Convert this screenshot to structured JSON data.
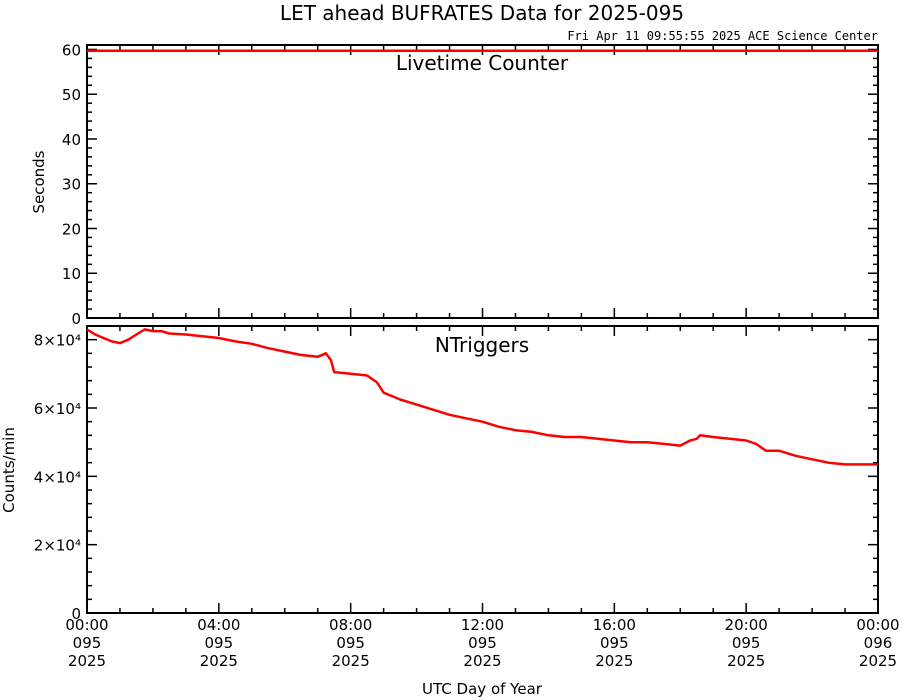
{
  "title": "LET ahead BUFRATES Data for 2025-095",
  "timestamp": "Fri Apr 11 09:55:55 2025 ACE Science Center",
  "x_axis_label": "UTC Day of Year",
  "line_color": "#ff0000",
  "label_color": "#0000ff",
  "x_ticks": [
    {
      "time": "00:00",
      "day": "095",
      "year": "2025"
    },
    {
      "time": "04:00",
      "day": "095",
      "year": "2025"
    },
    {
      "time": "08:00",
      "day": "095",
      "year": "2025"
    },
    {
      "time": "12:00",
      "day": "095",
      "year": "2025"
    },
    {
      "time": "16:00",
      "day": "095",
      "year": "2025"
    },
    {
      "time": "20:00",
      "day": "095",
      "year": "2025"
    },
    {
      "time": "00:00",
      "day": "096",
      "year": "2025"
    }
  ],
  "chart_data": [
    {
      "type": "line",
      "title": "Livetime Counter",
      "ylabel": "Seconds",
      "xlim": [
        0,
        24
      ],
      "ylim": [
        0,
        61
      ],
      "y_ticks": [
        "0",
        "10",
        "20",
        "30",
        "40",
        "50",
        "60"
      ],
      "y_tick_values": [
        0,
        10,
        20,
        30,
        40,
        50,
        60
      ],
      "series": [
        {
          "x": [
            0,
            24
          ],
          "y": [
            59.7,
            59.7
          ]
        }
      ]
    },
    {
      "type": "line",
      "title": "NTriggers",
      "ylabel": "Counts/min",
      "xlim": [
        0,
        24
      ],
      "ylim": [
        0,
        84000
      ],
      "y_ticks": [
        "0",
        "2×10⁴",
        "4×10⁴",
        "6×10⁴",
        "8×10⁴"
      ],
      "y_tick_values": [
        0,
        20000,
        40000,
        60000,
        80000
      ],
      "series": [
        {
          "x": [
            0,
            0.25,
            0.5,
            0.75,
            1.0,
            1.25,
            1.5,
            1.75,
            2.0,
            2.25,
            2.5,
            3.0,
            3.5,
            4.0,
            4.5,
            5.0,
            5.5,
            6.0,
            6.5,
            7.0,
            7.25,
            7.4,
            7.5,
            8.0,
            8.5,
            8.8,
            9.0,
            9.5,
            10.0,
            10.5,
            11.0,
            11.5,
            12.0,
            12.5,
            13.0,
            13.5,
            14.0,
            14.5,
            15.0,
            15.5,
            16.0,
            16.5,
            17.0,
            17.5,
            18.0,
            18.3,
            18.5,
            18.6,
            19.0,
            19.5,
            20.0,
            20.3,
            20.6,
            21.0,
            21.5,
            22.0,
            22.5,
            23.0,
            23.5,
            24.0
          ],
          "y": [
            83000,
            81500,
            80500,
            79500,
            79000,
            80000,
            81500,
            83000,
            82500,
            82500,
            81800,
            81500,
            81000,
            80500,
            79500,
            78800,
            77500,
            76500,
            75500,
            75000,
            76000,
            74000,
            70500,
            70000,
            69500,
            67500,
            64500,
            62500,
            61000,
            59500,
            58000,
            57000,
            56000,
            54500,
            53500,
            53000,
            52000,
            51500,
            51500,
            51000,
            50500,
            50000,
            50000,
            49500,
            49000,
            50500,
            51000,
            52000,
            51500,
            51000,
            50500,
            49500,
            47500,
            47500,
            46000,
            45000,
            44000,
            43500,
            43500,
            43500
          ]
        }
      ]
    }
  ]
}
